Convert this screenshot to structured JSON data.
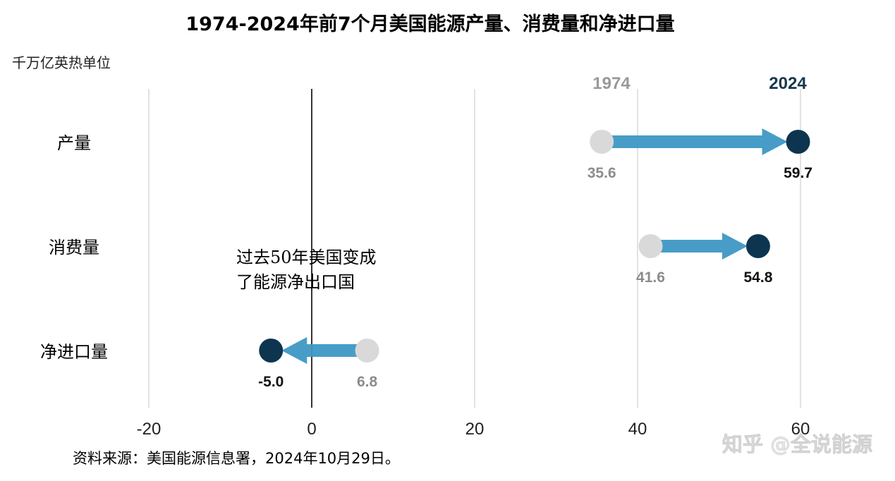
{
  "chart_data": {
    "type": "dumbbell-arrow",
    "title": "1974-2024年前7个月美国能源产量、消费量和净进口量",
    "unit": "千万亿英热单位",
    "xlim": [
      -20,
      60
    ],
    "xticks": [
      "-20",
      "0",
      "20",
      "40",
      "60"
    ],
    "year_start_label": "1974",
    "year_end_label": "2024",
    "categories": [
      "产量",
      "消费量",
      "净进口量"
    ],
    "series": [
      {
        "name": "1974",
        "values": [
          35.6,
          41.6,
          6.8
        ],
        "labels": [
          "35.6",
          "41.6",
          "6.8"
        ]
      },
      {
        "name": "2024",
        "values": [
          59.7,
          54.8,
          -5.0
        ],
        "labels": [
          "59.7",
          "54.8",
          "-5.0"
        ]
      }
    ],
    "annotation": [
      "过去50年美国变成",
      "了能源净出口国"
    ],
    "source": "资料来源：美国能源信息署，2024年10月29日。",
    "watermark": "知乎 @全说能源",
    "colors": {
      "start_dot": "#d9d9d9",
      "end_dot": "#0d3550",
      "arrow": "#3d98c4",
      "grid": "#d8d8d8",
      "zero_line": "#000000",
      "start_label": "#8c8c8c",
      "end_label": "#111111",
      "year_end": "#17384d"
    }
  }
}
